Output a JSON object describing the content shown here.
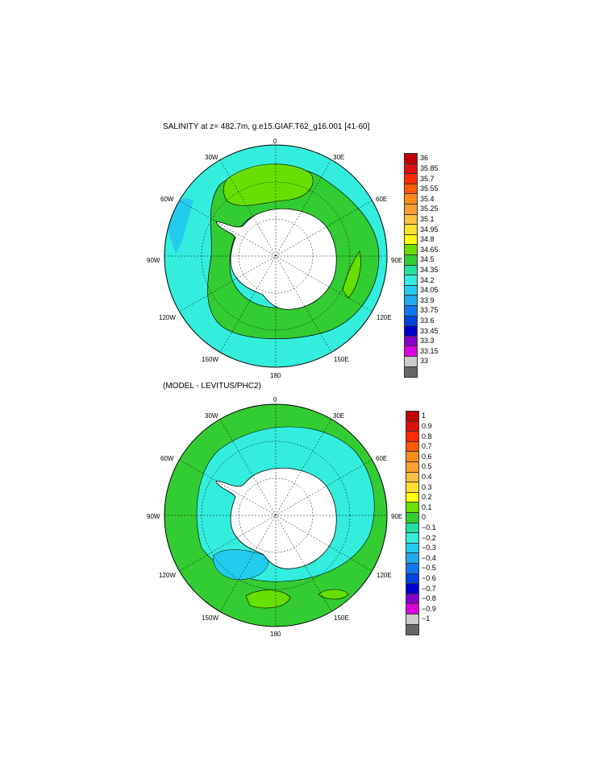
{
  "panels": [
    {
      "title": "SALINITY at z= 482.7m, g.e15.GIAF.T62_g16.001 [41-60]",
      "lon_labels": [
        "0",
        "30E",
        "60E",
        "90E",
        "120E",
        "150E",
        "180",
        "150W",
        "120W",
        "90W",
        "60W",
        "30W"
      ],
      "colorbar": {
        "labels": [
          "36",
          "35.85",
          "35.7",
          "35.55",
          "35.4",
          "35.25",
          "35.1",
          "34.95",
          "34.8",
          "34.65",
          "34.5",
          "34.35",
          "34.2",
          "34.05",
          "33.9",
          "33.75",
          "33.6",
          "33.45",
          "33.3",
          "33.15",
          "33"
        ],
        "colors": [
          "#c00000",
          "#e01010",
          "#ff2a00",
          "#ff5a00",
          "#ff8a1a",
          "#ffa030",
          "#ffc040",
          "#ffe030",
          "#ffff00",
          "#66e000",
          "#33cc33",
          "#22e0a0",
          "#33eedd",
          "#22ccee",
          "#22aaee",
          "#1177ee",
          "#0044dd",
          "#0000cc",
          "#8800cc",
          "#dd00dd",
          "#cccccc",
          "#666666"
        ]
      }
    },
    {
      "title": "(MODEL - LEVITUS/PHC2)",
      "lon_labels": [
        "0",
        "30E",
        "60E",
        "90E",
        "120E",
        "150E",
        "180",
        "150W",
        "120W",
        "90W",
        "60W",
        "30W"
      ],
      "colorbar": {
        "labels": [
          "1",
          "0.9",
          "0.8",
          "0.7",
          "0.6",
          "0.5",
          "0.4",
          "0.3",
          "0.2",
          "0.1",
          "0",
          "−0.1",
          "−0.2",
          "−0.3",
          "−0.4",
          "−0.5",
          "−0.6",
          "−0.7",
          "−0.8",
          "−0.9",
          "−1"
        ],
        "colors": [
          "#c00000",
          "#e01010",
          "#ff2a00",
          "#ff5a00",
          "#ff8a1a",
          "#ffa030",
          "#ffc040",
          "#ffe030",
          "#ffff00",
          "#66e000",
          "#33cc33",
          "#22e0a0",
          "#33eedd",
          "#22ccee",
          "#22aaee",
          "#1177ee",
          "#0044dd",
          "#0000cc",
          "#8800cc",
          "#dd00dd",
          "#cccccc",
          "#666666"
        ]
      }
    }
  ]
}
